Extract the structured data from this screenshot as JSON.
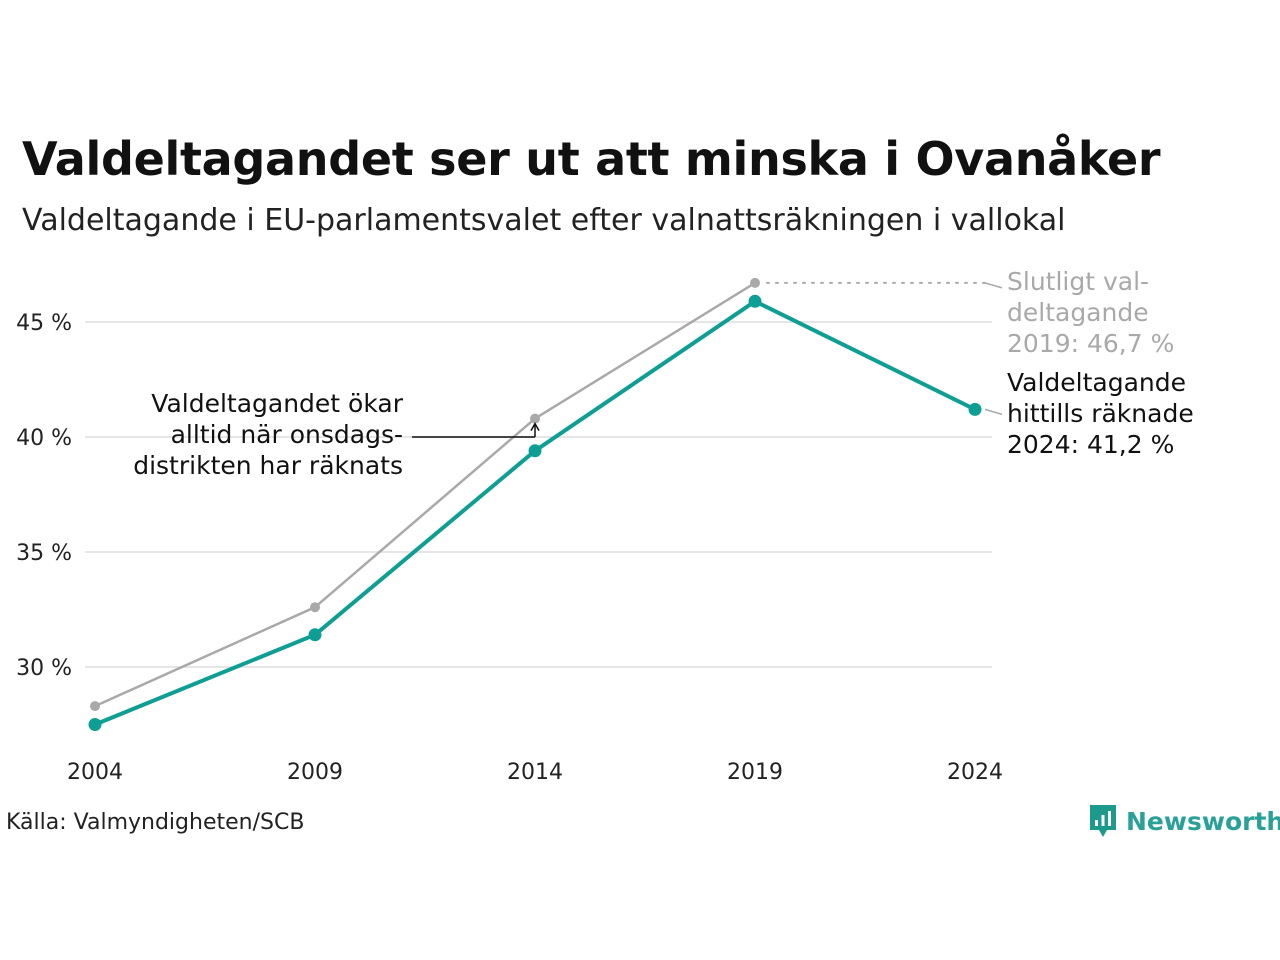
{
  "title": "Valdeltagandet ser ut att minska i Ovanåker",
  "subtitle": "Valdeltagande i EU-parlamentsvalet efter valnattsräkningen i vallokal",
  "source": "Källa: Valmyndigheten/SCB",
  "brand": {
    "name": "Newsworthy",
    "icon": "newsworthy-logo-icon",
    "color": "#1d9a8c"
  },
  "colors": {
    "counted": "#0f9e93",
    "final": "#a9a9a9",
    "grid": "#e6e6e6",
    "annotation": "#111111"
  },
  "chart_data": {
    "type": "line",
    "x": [
      "2004",
      "2009",
      "2014",
      "2019",
      "2024"
    ],
    "ylim": [
      27,
      47
    ],
    "yticks": [
      30,
      35,
      40,
      45
    ],
    "ytick_labels": [
      "30 %",
      "35 %",
      "40 %",
      "45 %"
    ],
    "grid": true,
    "series": [
      {
        "key": "final",
        "values": [
          28.3,
          32.6,
          40.8,
          46.7,
          null
        ],
        "color": "#a9a9a9"
      },
      {
        "key": "counted",
        "values": [
          27.5,
          31.4,
          39.4,
          45.9,
          41.2
        ],
        "color": "#0f9e93"
      }
    ],
    "annotations": {
      "final_label": [
        "Slutligt val-",
        "deltagande",
        "2019: 46,7 %"
      ],
      "counted_label": [
        "Valdeltagande",
        "hittills räknade",
        "2024: 41,2 %"
      ],
      "wednesday_note": [
        "Valdeltagandet ökar",
        "alltid när onsdags-",
        "distrikten har räknats"
      ]
    }
  }
}
